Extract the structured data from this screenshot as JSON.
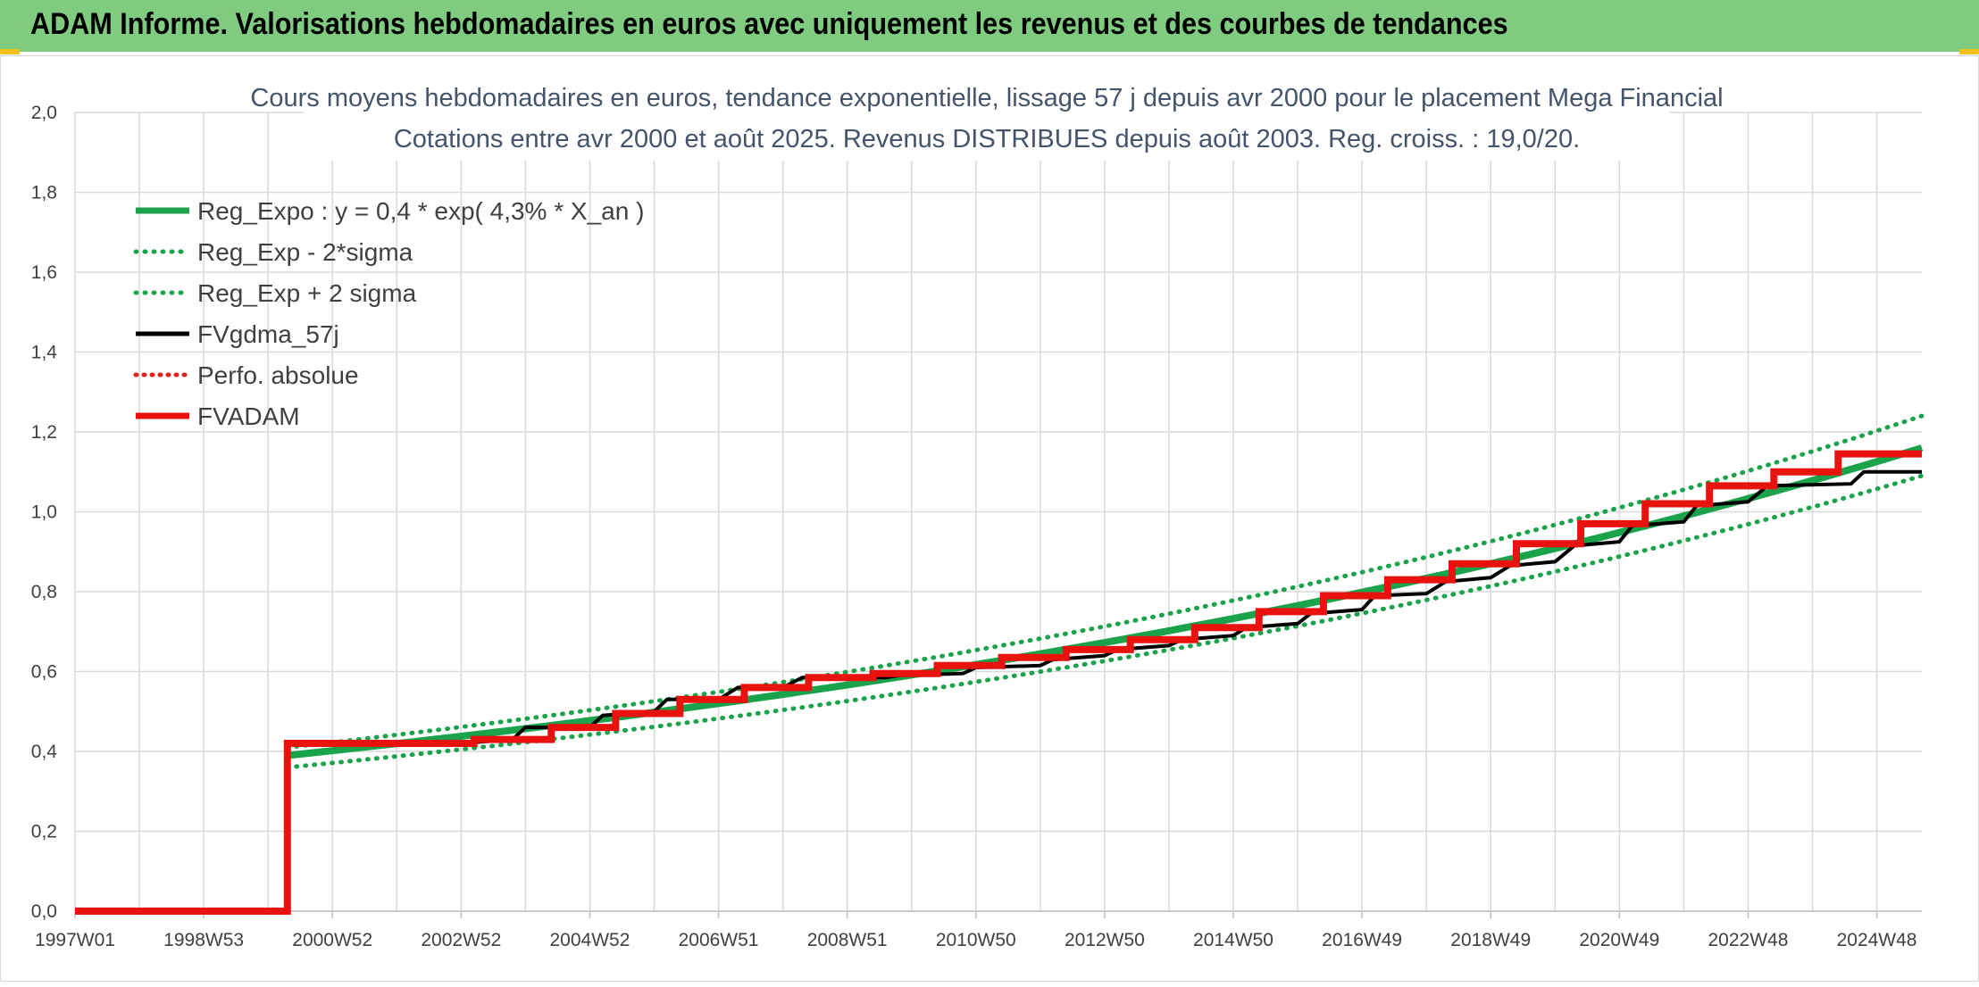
{
  "header": {
    "title": "ADAM Informe. Valorisations hebdomadaires en euros avec uniquement les revenus et des courbes de tendances"
  },
  "chart_data": {
    "type": "line",
    "title_lines": [
      "Cours moyens hebdomadaires en euros, tendance exponentielle, lissage 57 j depuis avr 2000 pour le placement Mega Financial",
      "Cotations entre avr 2000 et août 2025. Revenus DISTRIBUES depuis août 2003. Reg. croiss. : 19,0/20."
    ],
    "xlabel": "",
    "ylabel": "",
    "x_tick_labels": [
      "1997W01",
      "1998W53",
      "2000W52",
      "2002W52",
      "2004W52",
      "2006W51",
      "2008W51",
      "2010W50",
      "2012W50",
      "2014W50",
      "2016W49",
      "2018W49",
      "2020W49",
      "2022W48",
      "2024W48"
    ],
    "xlim": [
      1997.0,
      2025.7
    ],
    "ylim": [
      0,
      2.0
    ],
    "y_ticks": [
      "0,0",
      "0,2",
      "0,4",
      "0,6",
      "0,8",
      "1,0",
      "1,2",
      "1,4",
      "1,6",
      "1,8",
      "2,0"
    ],
    "grid": true,
    "legend_position": "top-left",
    "colors": {
      "trend": "#1aa34a",
      "smooth": "#000000",
      "perf": "#e32119",
      "adam": "#e8130f"
    },
    "series": [
      {
        "name": "Reg_Expo : y = 0,4 * exp( 4,3% *  X_an )",
        "style": "solid-green-thick",
        "x": [
          2000.3,
          2025.7
        ],
        "y": [
          0.39,
          1.16
        ],
        "model": {
          "a": 0.39,
          "rate": 0.043,
          "x0": 2000.3
        }
      },
      {
        "name": "Reg_Exp - 2*sigma",
        "style": "dotted-green",
        "x": [
          2000.3,
          2025.7
        ],
        "y": [
          0.36,
          1.09
        ]
      },
      {
        "name": "Reg_Exp + 2 sigma",
        "style": "dotted-green",
        "x": [
          2000.3,
          2025.7
        ],
        "y": [
          0.41,
          1.24
        ]
      },
      {
        "name": "FVgdma_57j",
        "style": "solid-black",
        "x": [
          1997.0,
          2000.3,
          2000.3,
          2003.0,
          2003.8,
          2004.0,
          2005.0,
          2005.2,
          2006.0,
          2006.2,
          2007.0,
          2007.3,
          2008.0,
          2008.3,
          2009.6,
          2009.8,
          2010.8,
          2011.0,
          2012.0,
          2012.2,
          2013.0,
          2013.2,
          2014.0,
          2014.2,
          2015.0,
          2015.2,
          2016.0,
          2016.2,
          2017.0,
          2017.2,
          2018.0,
          2018.3,
          2019.0,
          2019.3,
          2020.0,
          2020.3,
          2021.0,
          2021.2,
          2022.0,
          2022.2,
          2023.0,
          2023.3,
          2024.6,
          2024.8,
          2025.7
        ],
        "y": [
          0.0,
          0.0,
          0.42,
          0.42,
          0.43,
          0.46,
          0.46,
          0.49,
          0.5,
          0.53,
          0.53,
          0.56,
          0.56,
          0.585,
          0.585,
          0.59,
          0.595,
          0.61,
          0.615,
          0.63,
          0.64,
          0.655,
          0.665,
          0.68,
          0.69,
          0.71,
          0.72,
          0.745,
          0.755,
          0.79,
          0.795,
          0.825,
          0.835,
          0.865,
          0.875,
          0.915,
          0.925,
          0.965,
          0.975,
          1.015,
          1.025,
          1.065,
          1.07,
          1.1,
          1.1
        ]
      },
      {
        "name": "Perfo. absolue",
        "style": "dotted-red",
        "x": [],
        "y": []
      },
      {
        "name": "FVADAM",
        "style": "solid-red-thick",
        "x": [
          1997.0,
          2000.3,
          2000.3,
          2003.2,
          2003.2,
          2004.4,
          2004.4,
          2005.4,
          2005.4,
          2006.4,
          2006.4,
          2007.4,
          2007.4,
          2008.4,
          2008.4,
          2009.4,
          2009.4,
          2010.4,
          2010.4,
          2011.4,
          2011.4,
          2012.4,
          2012.4,
          2013.4,
          2013.4,
          2014.4,
          2014.4,
          2015.4,
          2015.4,
          2016.4,
          2016.4,
          2017.4,
          2017.4,
          2018.4,
          2018.4,
          2019.4,
          2019.4,
          2020.4,
          2020.4,
          2021.4,
          2021.4,
          2022.4,
          2022.4,
          2023.4,
          2023.4,
          2024.4,
          2024.4,
          2025.7
        ],
        "y": [
          0.0,
          0.0,
          0.42,
          0.42,
          0.43,
          0.43,
          0.46,
          0.46,
          0.495,
          0.495,
          0.53,
          0.53,
          0.56,
          0.56,
          0.585,
          0.585,
          0.595,
          0.595,
          0.615,
          0.615,
          0.635,
          0.635,
          0.655,
          0.655,
          0.68,
          0.68,
          0.71,
          0.71,
          0.75,
          0.75,
          0.79,
          0.79,
          0.83,
          0.83,
          0.87,
          0.87,
          0.92,
          0.92,
          0.97,
          0.97,
          1.02,
          1.02,
          1.065,
          1.065,
          1.1,
          1.1,
          1.145,
          1.145
        ]
      }
    ]
  }
}
